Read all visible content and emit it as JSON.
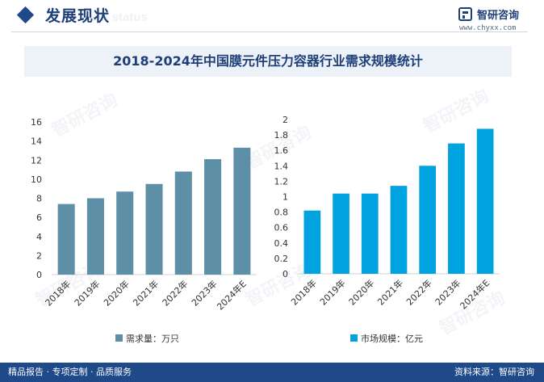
{
  "header": {
    "section_title": "发展现状",
    "section_subtitle": "ent status",
    "logo_name": "智研咨询",
    "logo_url": "www.chyxx.com"
  },
  "title": "2018-2024年中国膜元件压力容器行业需求规模统计",
  "colors": {
    "demand_bar": "#5d8fa6",
    "market_bar": "#00a3e0",
    "brand": "#1e4a8a"
  },
  "chart_data": [
    {
      "type": "bar",
      "categories": [
        "2018年",
        "2019年",
        "2020年",
        "2021年",
        "2022年",
        "2023年",
        "2024年E"
      ],
      "series": [
        {
          "name": "需求量：万只",
          "values": [
            7.4,
            8.0,
            8.7,
            9.5,
            10.8,
            12.1,
            13.3
          ]
        }
      ],
      "ylim": [
        0,
        16
      ],
      "yticks": [
        "0",
        "2",
        "4",
        "6",
        "8",
        "10",
        "12",
        "14",
        "16"
      ],
      "legend": "bottom",
      "grid": false
    },
    {
      "type": "bar",
      "categories": [
        "2018年",
        "2019年",
        "2020年",
        "2021年",
        "2022年",
        "2023年",
        "2024年E"
      ],
      "series": [
        {
          "name": "市场规模：亿元",
          "values": [
            0.82,
            1.04,
            1.04,
            1.14,
            1.4,
            1.69,
            1.88
          ]
        }
      ],
      "ylim": [
        0,
        2
      ],
      "yticks": [
        "0",
        "0.2",
        "0.4",
        "0.6",
        "0.8",
        "1",
        "1.2",
        "1.4",
        "1.6",
        "1.8",
        "2"
      ],
      "legend": "bottom",
      "grid": false
    }
  ],
  "footer": {
    "left_text": "精品报告 · 专项定制 · 品质服务",
    "source_text": "资料来源：智研咨询"
  },
  "watermark": "智研咨询"
}
